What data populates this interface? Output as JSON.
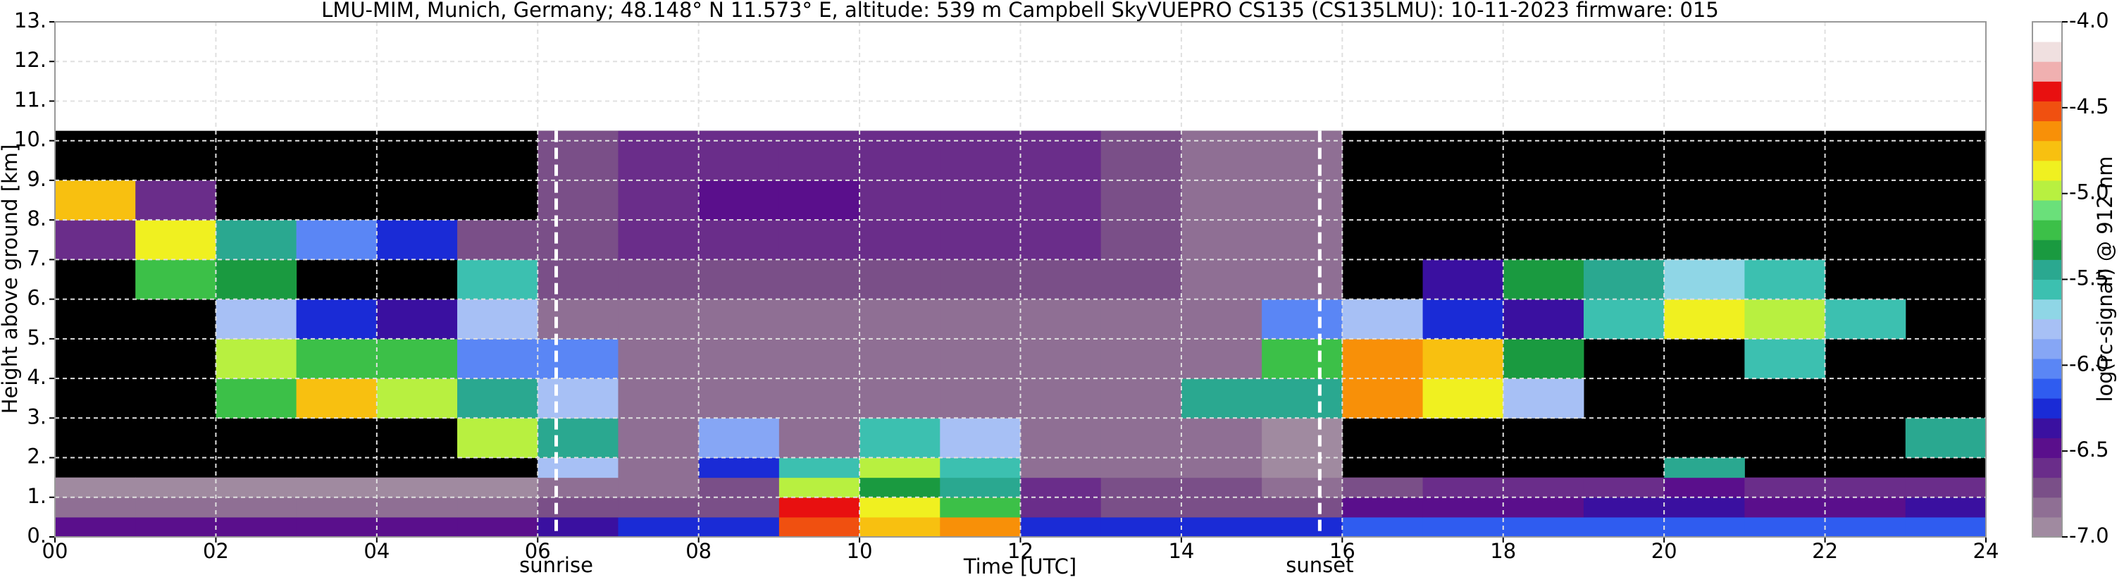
{
  "chart_data": {
    "type": "heatmap",
    "title": "LMU-MIM, Munich, Germany; 48.148° N 11.573° E, altitude: 539 m    Campbell SkyVUEPRO CS135 (CS135LMU): 10-11-2023    firmware: 015",
    "x_label": "Time [UTC]",
    "y_label": "Height above ground [km]",
    "colorbar_label": "log(rc-signal) @ 912 nm",
    "xlim": [
      0,
      24
    ],
    "xticks": [
      {
        "value": 0,
        "label": "00"
      },
      {
        "value": 2,
        "label": "02"
      },
      {
        "value": 4,
        "label": "04"
      },
      {
        "value": 6,
        "label": "06"
      },
      {
        "value": 8,
        "label": "08"
      },
      {
        "value": 10,
        "label": "10"
      },
      {
        "value": 12,
        "label": "12"
      },
      {
        "value": 14,
        "label": "14"
      },
      {
        "value": 16,
        "label": "16"
      },
      {
        "value": 18,
        "label": "18"
      },
      {
        "value": 20,
        "label": "20"
      },
      {
        "value": 22,
        "label": "22"
      },
      {
        "value": 24,
        "label": "24"
      }
    ],
    "ylim": [
      0,
      13
    ],
    "yticks": [
      {
        "value": 0,
        "label": "0."
      },
      {
        "value": 1,
        "label": "1."
      },
      {
        "value": 2,
        "label": "2."
      },
      {
        "value": 3,
        "label": "3."
      },
      {
        "value": 4,
        "label": "4."
      },
      {
        "value": 5,
        "label": "5."
      },
      {
        "value": 6,
        "label": "6."
      },
      {
        "value": 7,
        "label": "7."
      },
      {
        "value": 8,
        "label": "8."
      },
      {
        "value": 9,
        "label": "9."
      },
      {
        "value": 10,
        "label": "10."
      },
      {
        "value": 11,
        "label": "11."
      },
      {
        "value": 12,
        "label": "12."
      },
      {
        "value": 13,
        "label": "13."
      }
    ],
    "clim": [
      -7.0,
      -4.0
    ],
    "cticks": [
      {
        "value": -4.0,
        "label": "-4.0"
      },
      {
        "value": -4.5,
        "label": "-4.5"
      },
      {
        "value": -5.0,
        "label": "-5.0"
      },
      {
        "value": -5.5,
        "label": "-5.5"
      },
      {
        "value": -6.0,
        "label": "-6.0"
      },
      {
        "value": -6.5,
        "label": "-6.5"
      },
      {
        "value": -7.0,
        "label": "-7.0"
      }
    ],
    "colormap": [
      "#a08aa0",
      "#8f6f94",
      "#7a4f88",
      "#6a2d8a",
      "#5a0f8c",
      "#3a10a0",
      "#1a2bd6",
      "#2f5cf0",
      "#5a86f5",
      "#86a6f5",
      "#a7c0f5",
      "#8fd6e6",
      "#3cc0b0",
      "#2aa890",
      "#1a9a40",
      "#3cc048",
      "#6ae07a",
      "#b8f040",
      "#f0f020",
      "#f8c010",
      "#f89008",
      "#f05010",
      "#e81010",
      "#f0b0b0",
      "#f0e0e0",
      "#ffffff"
    ],
    "no_signal_color": "#000000",
    "grid": true,
    "markers": [
      {
        "text": "sunrise",
        "x": 6.23
      },
      {
        "text": "sunset",
        "x": 15.72
      }
    ],
    "xbins": [
      0,
      1,
      2,
      3,
      4,
      5,
      6,
      7,
      8,
      9,
      10,
      11,
      12,
      13,
      14,
      15,
      16,
      17,
      18,
      19,
      20,
      21,
      22,
      23,
      24
    ],
    "ybins": [
      0,
      0.5,
      1,
      1.5,
      2,
      3,
      4,
      5,
      6,
      7,
      8,
      9,
      10.25
    ],
    "z": [
      [
        -6.5,
        -6.5,
        -6.5,
        -6.5,
        -6.5,
        -6.5,
        -6.4,
        -6.3,
        -6.3,
        -4.5,
        -4.8,
        -4.6,
        -6.2,
        -6.3,
        -6.3,
        -6.3,
        -6.1,
        -6.1,
        -6.1,
        -6.1,
        -6.1,
        -6.1,
        -6.1,
        -6.1
      ],
      [
        -6.8,
        -6.8,
        -6.8,
        -6.8,
        -6.8,
        -6.8,
        -6.7,
        -6.7,
        -6.7,
        -4.4,
        -4.9,
        -5.2,
        -6.6,
        -6.7,
        -6.7,
        -6.7,
        -6.5,
        -6.5,
        -6.5,
        -6.4,
        -6.4,
        -6.5,
        -6.5,
        -6.4
      ],
      [
        -6.9,
        -6.9,
        -6.9,
        -6.9,
        -6.9,
        -6.9,
        -6.8,
        -6.8,
        -6.7,
        -5.0,
        -5.3,
        -5.4,
        -6.6,
        -6.7,
        -6.7,
        -6.8,
        -6.7,
        -6.6,
        -6.6,
        -6.6,
        -6.5,
        -6.6,
        -6.6,
        -6.6
      ],
      [
        null,
        null,
        null,
        null,
        null,
        null,
        -5.8,
        -6.8,
        -6.2,
        -5.6,
        -5.0,
        -5.6,
        -6.8,
        -6.8,
        -6.8,
        -6.9,
        null,
        null,
        null,
        null,
        -5.5,
        null,
        null,
        null
      ],
      [
        null,
        null,
        null,
        null,
        null,
        -5.0,
        -5.5,
        -6.8,
        -5.9,
        -6.8,
        -5.6,
        -5.8,
        -6.8,
        -6.8,
        -6.8,
        -6.9,
        null,
        null,
        null,
        null,
        null,
        null,
        null,
        -5.5
      ],
      [
        null,
        null,
        -5.2,
        -4.8,
        -5.0,
        -5.5,
        -5.8,
        -6.8,
        -6.8,
        -6.8,
        -6.8,
        -6.8,
        -6.8,
        -6.8,
        -5.5,
        -5.4,
        -4.6,
        -4.9,
        -5.8,
        null,
        null,
        null,
        null,
        null
      ],
      [
        null,
        null,
        -5.0,
        -5.2,
        -5.2,
        -6.0,
        -6.0,
        -6.8,
        -6.8,
        -6.8,
        -6.8,
        -6.8,
        -6.8,
        -6.8,
        -6.8,
        -5.2,
        -4.6,
        -4.8,
        -5.3,
        null,
        null,
        -5.6,
        null,
        null
      ],
      [
        null,
        null,
        -5.8,
        -6.2,
        -6.4,
        -5.8,
        -6.8,
        -6.8,
        -6.8,
        -6.8,
        -6.8,
        -6.8,
        -6.8,
        -6.8,
        -6.8,
        -6.0,
        -5.8,
        -6.2,
        -6.4,
        -5.6,
        -4.9,
        -5.0,
        -5.6,
        null
      ],
      [
        null,
        -5.2,
        -5.3,
        null,
        null,
        -5.6,
        -6.7,
        -6.7,
        -6.7,
        -6.7,
        -6.7,
        -6.7,
        -6.7,
        -6.7,
        -6.8,
        -6.8,
        null,
        -6.4,
        -5.3,
        -5.4,
        -5.7,
        -5.6,
        null,
        null
      ],
      [
        -6.6,
        -4.9,
        -5.4,
        -6.0,
        -6.3,
        -6.7,
        -6.7,
        -6.6,
        -6.6,
        -6.6,
        -6.6,
        -6.6,
        -6.6,
        -6.7,
        -6.8,
        -6.8,
        null,
        null,
        null,
        null,
        null,
        null,
        null,
        null
      ],
      [
        -4.8,
        -6.6,
        null,
        null,
        null,
        null,
        -6.7,
        -6.6,
        -6.5,
        -6.5,
        -6.6,
        -6.6,
        -6.6,
        -6.7,
        -6.8,
        -6.8,
        null,
        null,
        null,
        null,
        null,
        null,
        null,
        null
      ],
      [
        null,
        null,
        null,
        null,
        null,
        null,
        -6.7,
        -6.6,
        -6.6,
        -6.6,
        -6.6,
        -6.6,
        -6.6,
        -6.7,
        -6.8,
        -6.8,
        null,
        null,
        null,
        null,
        null,
        null,
        null,
        null
      ]
    ]
  }
}
